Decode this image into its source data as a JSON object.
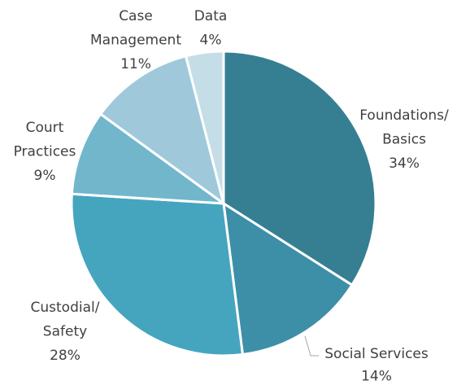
{
  "chart_data": {
    "type": "pie",
    "categories": [
      "Foundations/\nBasics",
      "Social Services",
      "Custodial/\nSafety",
      "Court\nPractices",
      "Case\nManagement",
      "Data"
    ],
    "values": [
      34,
      14,
      28,
      9,
      11,
      4
    ],
    "value_labels": [
      "34%",
      "14%",
      "28%",
      "9%",
      "11%",
      "4%"
    ],
    "colors": [
      "#367f93",
      "#3d8fa8",
      "#45a5bf",
      "#72b6cc",
      "#9fc9da",
      "#c5dde7"
    ]
  }
}
